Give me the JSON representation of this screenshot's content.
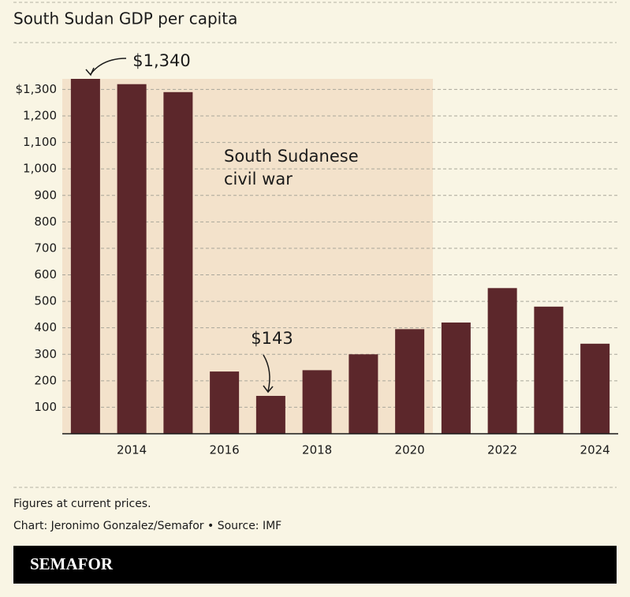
{
  "chart_data": {
    "type": "bar",
    "title": "South Sudan GDP per capita",
    "x": [
      2013,
      2014,
      2015,
      2016,
      2017,
      2018,
      2019,
      2020,
      2021,
      2022,
      2023,
      2024
    ],
    "values": [
      1340,
      1320,
      1290,
      235,
      143,
      240,
      300,
      395,
      420,
      550,
      480,
      340
    ],
    "color": "#5c272b",
    "xlim": [
      2012.5,
      2024.5
    ],
    "xticks": [
      2014,
      2016,
      2018,
      2020,
      2022,
      2024
    ],
    "ylim": [
      0,
      1340
    ],
    "yticks": [
      100,
      200,
      300,
      400,
      500,
      600,
      700,
      800,
      900,
      {
        "value": 1000,
        "label": "1,000"
      },
      {
        "value": 1100,
        "label": "1,100"
      },
      {
        "value": 1200,
        "label": "1,200"
      },
      {
        "value": 1300,
        "label": "$1,300"
      }
    ],
    "grid": true,
    "shaded": {
      "from": 2012.5,
      "to": 2020.5,
      "color": "#f3e2cb",
      "label": [
        "South Sudanese",
        "civil war"
      ]
    },
    "annotations": [
      {
        "text": "$1,340",
        "x": 2013
      },
      {
        "text": "$143",
        "x": 2017
      }
    ]
  },
  "footer": {
    "note": "Figures at current prices.",
    "credit": "Chart: Jeronimo Gonzalez/Semafor • Source: IMF",
    "logo": "SEMAFOR"
  }
}
